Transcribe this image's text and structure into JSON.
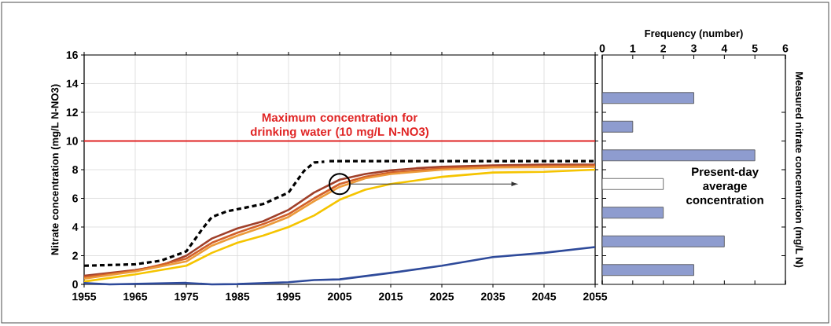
{
  "chart_data": [
    {
      "type": "line",
      "ylabel": "Nitrate concentration (mg/L N-NO3)",
      "xlim": [
        1955,
        2055
      ],
      "ylim": [
        0,
        16
      ],
      "xticks": [
        1955,
        1965,
        1975,
        1985,
        1995,
        2005,
        2015,
        2025,
        2035,
        2045,
        2055
      ],
      "yticks": [
        0,
        2,
        4,
        6,
        8,
        10,
        12,
        14,
        16
      ],
      "grid": true,
      "marker": "none",
      "ref_lines": [
        {
          "axis": "y",
          "value": 10,
          "label": "Maximum concentration for drinking water (10 mg/L N-NO3)",
          "color": "#e02424"
        }
      ],
      "series": [
        {
          "color": "#000000",
          "line_style": "dashed",
          "x": [
            1955,
            1965,
            1970,
            1975,
            1978,
            1980,
            1983,
            1990,
            1995,
            1998,
            2000,
            2002
          ],
          "values": [
            1.3,
            1.4,
            1.65,
            2.3,
            3.8,
            4.7,
            5.1,
            5.6,
            6.4,
            7.9,
            8.5,
            8.55
          ]
        },
        {
          "color": "#000000",
          "line_style": "dashed",
          "x": [
            2003,
            2055
          ],
          "values": [
            8.6,
            8.6
          ]
        },
        {
          "color": "#a0402a",
          "line_style": "solid",
          "x": [
            1955,
            1960,
            1965,
            1970,
            1975,
            1980,
            1985,
            1990,
            1995,
            2000,
            2005,
            2010,
            2015,
            2020,
            2025,
            2035,
            2045,
            2055
          ],
          "values": [
            0.6,
            0.8,
            1.0,
            1.3,
            2.0,
            3.2,
            3.9,
            4.4,
            5.2,
            6.4,
            7.3,
            7.7,
            7.95,
            8.1,
            8.2,
            8.3,
            8.35,
            8.35
          ]
        },
        {
          "color": "#d2602a",
          "line_style": "solid",
          "x": [
            1955,
            1965,
            1975,
            1980,
            1985,
            1990,
            1995,
            2000,
            2005,
            2010,
            2015,
            2025,
            2035,
            2055
          ],
          "values": [
            0.5,
            0.95,
            1.8,
            2.9,
            3.6,
            4.2,
            4.9,
            6.0,
            7.0,
            7.5,
            7.8,
            8.1,
            8.2,
            8.3
          ]
        },
        {
          "color": "#ec9a3a",
          "line_style": "solid",
          "x": [
            1955,
            1965,
            1975,
            1980,
            1985,
            1990,
            1995,
            2000,
            2005,
            2010,
            2015,
            2025,
            2035,
            2055
          ],
          "values": [
            0.4,
            0.9,
            1.6,
            2.7,
            3.4,
            4.0,
            4.7,
            5.8,
            6.8,
            7.4,
            7.7,
            8.0,
            8.15,
            8.2
          ]
        },
        {
          "color": "#f5c400",
          "line_style": "solid",
          "x": [
            1955,
            1965,
            1975,
            1980,
            1985,
            1990,
            1995,
            2000,
            2005,
            2010,
            2015,
            2025,
            2035,
            2045,
            2055
          ],
          "values": [
            0.2,
            0.7,
            1.3,
            2.2,
            2.9,
            3.4,
            4.0,
            4.8,
            5.9,
            6.6,
            7.0,
            7.5,
            7.8,
            7.85,
            8.0
          ]
        },
        {
          "color": "#2e4a9a",
          "line_style": "solid",
          "x": [
            1955,
            1960,
            1975,
            1980,
            1985,
            1995,
            2000,
            2005,
            2015,
            2025,
            2035,
            2045,
            2055
          ],
          "values": [
            0.1,
            0.0,
            0.1,
            0.0,
            0.02,
            0.15,
            0.3,
            0.35,
            0.8,
            1.3,
            1.9,
            2.2,
            2.6
          ]
        }
      ]
    },
    {
      "type": "bar",
      "orientation": "horizontal",
      "xlabel": "Frequency (number)",
      "ylabel": "Measured nitrate concentration (mg/L N)",
      "categories": [
        null,
        null,
        null,
        null,
        null,
        null,
        null
      ],
      "values": [
        3,
        1,
        5,
        2,
        2,
        4,
        3
      ],
      "colors": [
        "#8e9ccf",
        "#8e9ccf",
        "#8e9ccf",
        "#ffffff",
        "#8e9ccf",
        "#8e9ccf",
        "#8e9ccf"
      ],
      "xlim": [
        0,
        6
      ],
      "xticks": [
        0,
        1,
        2,
        3,
        4,
        5,
        6
      ],
      "tick_labels": "x",
      "grid": false,
      "annotations": [
        "Present-day average concentration"
      ]
    }
  ]
}
